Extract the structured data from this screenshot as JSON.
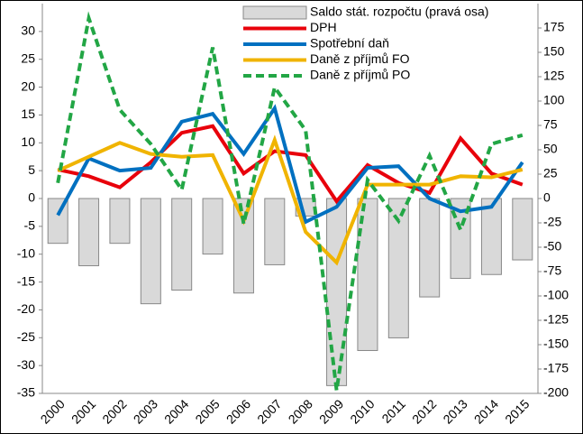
{
  "chart_data": {
    "type": "combo",
    "categories": [
      "2000",
      "2001",
      "2002",
      "2003",
      "2004",
      "2005",
      "2006",
      "2007",
      "2008",
      "2009",
      "2010",
      "2011",
      "2012",
      "2013",
      "2014",
      "2015"
    ],
    "ylim": [
      -35,
      35
    ],
    "yticks": [
      -35,
      -30,
      -25,
      -20,
      -15,
      -10,
      -5,
      0,
      5,
      10,
      15,
      20,
      25,
      30
    ],
    "y2lim": [
      -200,
      200
    ],
    "y2ticks": [
      -200,
      -175,
      -150,
      -125,
      -100,
      -75,
      -50,
      -25,
      0,
      25,
      50,
      75,
      100,
      125,
      150,
      175
    ],
    "series": [
      {
        "name": "Saldo stát. rozpočtu (pravá osa)",
        "type": "bar",
        "axis": "y2",
        "color": "#d9d9d9",
        "values": [
          -46,
          -69,
          -46,
          -108,
          -94,
          -57,
          -97,
          -68,
          -18,
          -192,
          -156,
          -143,
          -101,
          -82,
          -78,
          -63
        ]
      },
      {
        "name": "DPH",
        "type": "line",
        "color": "#e8000b",
        "values": [
          5.2,
          4,
          2,
          6.5,
          11.8,
          13,
          4.5,
          8.5,
          7.8,
          -0.5,
          6,
          2.8,
          1,
          10.8,
          4.5,
          2.5
        ]
      },
      {
        "name": "Spotřební daň",
        "type": "line",
        "color": "#0070c0",
        "values": [
          -3,
          7.2,
          5,
          5.5,
          13.8,
          15.2,
          8,
          16.2,
          -4.2,
          -1.5,
          5.5,
          5.8,
          0,
          -2.3,
          -1.5,
          6.5
        ]
      },
      {
        "name": "Daně z příjmů FO",
        "type": "line",
        "color": "#f0b400",
        "values": [
          5,
          7.5,
          10,
          8,
          7.5,
          7.8,
          -4,
          10.5,
          -6,
          -11.5,
          2.5,
          2.5,
          2.5,
          4,
          3.8,
          5.2
        ]
      },
      {
        "name": "Daně z příjmů PO",
        "type": "dashed",
        "axis": "y2",
        "color": "#22a645",
        "values": [
          16,
          185,
          91,
          56,
          9,
          155,
          -26,
          114,
          70,
          -197,
          19,
          -23,
          44,
          -32,
          56,
          65
        ]
      }
    ]
  }
}
